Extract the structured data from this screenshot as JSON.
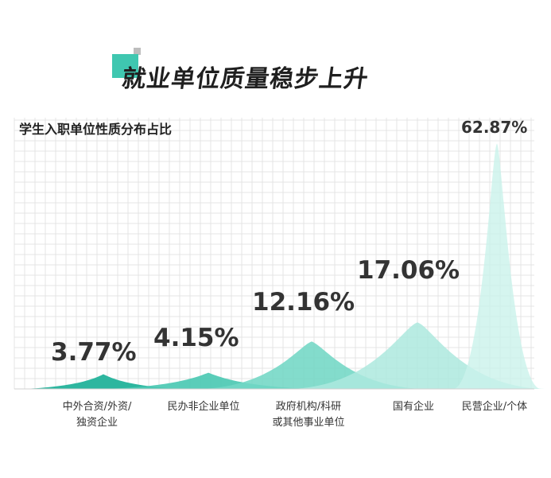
{
  "page": {
    "title": "就业单位质量稳步上升"
  },
  "colors": {
    "accent": "#3fc7b0",
    "grid": "#e4e4e4",
    "text": "#333333"
  },
  "chart_data": {
    "type": "area",
    "title": "学生入职单位性质分布占比",
    "unit": "%",
    "categories": [
      [
        "中外合资/外资/",
        "独资企业"
      ],
      [
        "民办非企业单位"
      ],
      [
        "政府机构/科研",
        "或其他事业单位"
      ],
      [
        "国有企业"
      ],
      [
        "民营企业/个体"
      ]
    ],
    "values": [
      3.77,
      4.15,
      12.16,
      17.06,
      62.87
    ],
    "value_labels": [
      "3.77%",
      "4.15%",
      "12.16%",
      "17.06%",
      "62.87%"
    ],
    "ylim": [
      0,
      63
    ],
    "grid": true
  }
}
